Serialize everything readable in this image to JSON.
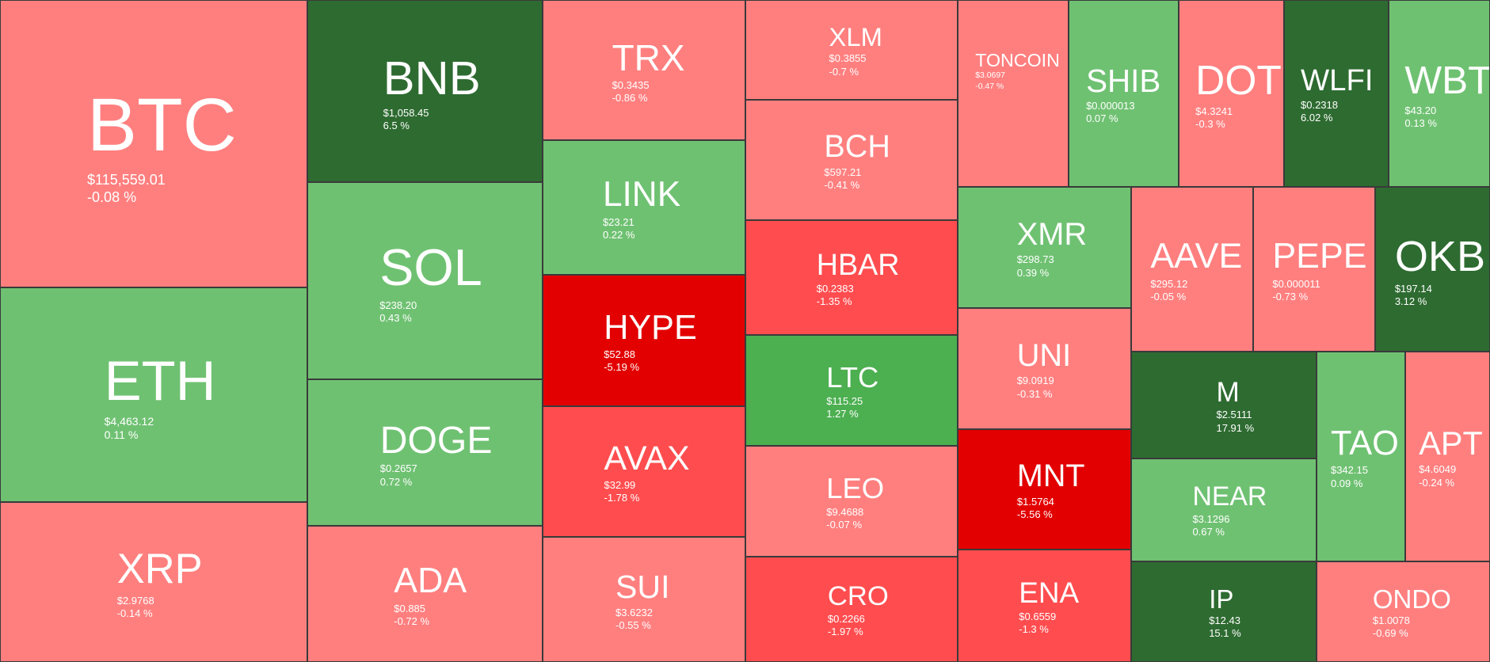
{
  "chart_data": {
    "type": "treemap",
    "colors": {
      "strong_down": "#e20000",
      "down": "#ff4d4f",
      "mild_down": "#ff7f7f",
      "mild_up": "#6fc172",
      "up": "#4caf50",
      "strong_up": "#2e6b31",
      "border": "#3a3a3a",
      "text": "#ffffff"
    },
    "tiles": [
      {
        "symbol": "BTC",
        "price": "$115,559.01",
        "change": "-0.08 %",
        "change_pct": -0.08
      },
      {
        "symbol": "ETH",
        "price": "$4,463.12",
        "change": "0.11 %",
        "change_pct": 0.11
      },
      {
        "symbol": "XRP",
        "price": "$2.9768",
        "change": "-0.14 %",
        "change_pct": -0.14
      },
      {
        "symbol": "BNB",
        "price": "$1,058.45",
        "change": "6.5 %",
        "change_pct": 6.5
      },
      {
        "symbol": "SOL",
        "price": "$238.20",
        "change": "0.43 %",
        "change_pct": 0.43
      },
      {
        "symbol": "DOGE",
        "price": "$0.2657",
        "change": "0.72 %",
        "change_pct": 0.72
      },
      {
        "symbol": "ADA",
        "price": "$0.885",
        "change": "-0.72 %",
        "change_pct": -0.72
      },
      {
        "symbol": "TRX",
        "price": "$0.3435",
        "change": "-0.86 %",
        "change_pct": -0.86
      },
      {
        "symbol": "LINK",
        "price": "$23.21",
        "change": "0.22 %",
        "change_pct": 0.22
      },
      {
        "symbol": "HYPE",
        "price": "$52.88",
        "change": "-5.19 %",
        "change_pct": -5.19
      },
      {
        "symbol": "AVAX",
        "price": "$32.99",
        "change": "-1.78 %",
        "change_pct": -1.78
      },
      {
        "symbol": "SUI",
        "price": "$3.6232",
        "change": "-0.55 %",
        "change_pct": -0.55
      },
      {
        "symbol": "XLM",
        "price": "$0.3855",
        "change": "-0.7 %",
        "change_pct": -0.7
      },
      {
        "symbol": "BCH",
        "price": "$597.21",
        "change": "-0.41 %",
        "change_pct": -0.41
      },
      {
        "symbol": "HBAR",
        "price": "$0.2383",
        "change": "-1.35 %",
        "change_pct": -1.35
      },
      {
        "symbol": "LTC",
        "price": "$115.25",
        "change": "1.27 %",
        "change_pct": 1.27
      },
      {
        "symbol": "LEO",
        "price": "$9.4688",
        "change": "-0.07 %",
        "change_pct": -0.07
      },
      {
        "symbol": "CRO",
        "price": "$0.2266",
        "change": "-1.97 %",
        "change_pct": -1.97
      },
      {
        "symbol": "TONCOIN",
        "price": "$3.0697",
        "change": "-0.47 %",
        "change_pct": -0.47
      },
      {
        "symbol": "SHIB",
        "price": "$0.000013",
        "change": "0.07 %",
        "change_pct": 0.07
      },
      {
        "symbol": "DOT",
        "price": "$4.3241",
        "change": "-0.3 %",
        "change_pct": -0.3
      },
      {
        "symbol": "WLFI",
        "price": "$0.2318",
        "change": "6.02 %",
        "change_pct": 6.02
      },
      {
        "symbol": "WBT",
        "price": "$43.20",
        "change": "0.13 %",
        "change_pct": 0.13
      },
      {
        "symbol": "XMR",
        "price": "$298.73",
        "change": "0.39 %",
        "change_pct": 0.39
      },
      {
        "symbol": "AAVE",
        "price": "$295.12",
        "change": "-0.05 %",
        "change_pct": -0.05
      },
      {
        "symbol": "PEPE",
        "price": "$0.000011",
        "change": "-0.73 %",
        "change_pct": -0.73
      },
      {
        "symbol": "OKB",
        "price": "$197.14",
        "change": "3.12 %",
        "change_pct": 3.12
      },
      {
        "symbol": "UNI",
        "price": "$9.0919",
        "change": "-0.31 %",
        "change_pct": -0.31
      },
      {
        "symbol": "MNT",
        "price": "$1.5764",
        "change": "-5.56 %",
        "change_pct": -5.56
      },
      {
        "symbol": "ENA",
        "price": "$0.6559",
        "change": "-1.3 %",
        "change_pct": -1.3
      },
      {
        "symbol": "M",
        "price": "$2.5111",
        "change": "17.91 %",
        "change_pct": 17.91
      },
      {
        "symbol": "NEAR",
        "price": "$3.1296",
        "change": "0.67 %",
        "change_pct": 0.67
      },
      {
        "symbol": "IP",
        "price": "$12.43",
        "change": "15.1 %",
        "change_pct": 15.1
      },
      {
        "symbol": "TAO",
        "price": "$342.15",
        "change": "0.09 %",
        "change_pct": 0.09
      },
      {
        "symbol": "APT",
        "price": "$4.6049",
        "change": "-0.24 %",
        "change_pct": -0.24
      },
      {
        "symbol": "ONDO",
        "price": "$1.0078",
        "change": "-0.69 %",
        "change_pct": -0.69
      }
    ]
  }
}
